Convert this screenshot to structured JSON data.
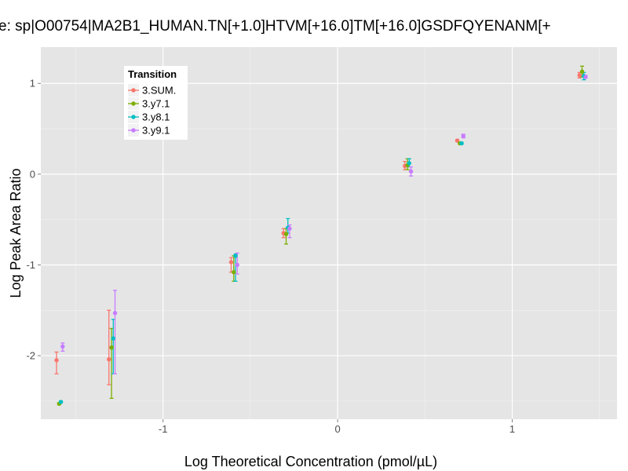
{
  "chart_data": {
    "type": "scatter",
    "title": "e: sp|O00754|MA2B1_HUMAN.TN[+1.0]HTVM[+16.0]TM[+16.0]GSDFQYENANM[+",
    "xlabel": "Log Theoretical Concentration (pmol/µL)",
    "ylabel": "Log Peak Area Ratio",
    "xlim": [
      -1.7,
      1.6
    ],
    "ylim": [
      -2.7,
      1.4
    ],
    "xticks": [
      -1,
      0,
      1
    ],
    "xtick_labels": [
      "-1",
      "0",
      "1"
    ],
    "yticks": [
      -2,
      -1,
      0,
      1
    ],
    "ytick_labels": [
      "-2",
      "-1",
      "0",
      "1"
    ],
    "grid": true,
    "legend": {
      "title": "Transition",
      "position": "top-left"
    },
    "series": [
      {
        "name": "3.SUM.",
        "color": "#F8766D",
        "points": [
          {
            "x": -1.61,
            "y": -2.05,
            "lo": -2.2,
            "hi": -1.96
          },
          {
            "x": -1.31,
            "y": -2.04,
            "lo": -2.32,
            "hi": -1.5
          },
          {
            "x": -0.61,
            "y": -0.97,
            "lo": -1.08,
            "hi": -0.92
          },
          {
            "x": -0.31,
            "y": -0.65,
            "lo": -0.7,
            "hi": -0.6
          },
          {
            "x": 0.385,
            "y": 0.09,
            "lo": 0.05,
            "hi": 0.14
          },
          {
            "x": 0.685,
            "y": 0.37,
            "lo": 0.36,
            "hi": 0.38
          },
          {
            "x": 1.385,
            "y": 1.09,
            "lo": 1.06,
            "hi": 1.12
          }
        ]
      },
      {
        "name": "3.y7.1",
        "color": "#7CAE00",
        "points": [
          {
            "x": -1.595,
            "y": -2.53,
            "lo": -2.54,
            "hi": -2.52
          },
          {
            "x": -1.295,
            "y": -1.91,
            "lo": -2.47,
            "hi": -1.7
          },
          {
            "x": -0.595,
            "y": -1.08,
            "lo": -1.18,
            "hi": -0.9
          },
          {
            "x": -0.295,
            "y": -0.66,
            "lo": -0.77,
            "hi": -0.6
          },
          {
            "x": 0.4,
            "y": 0.1,
            "lo": 0.05,
            "hi": 0.17
          },
          {
            "x": 0.7,
            "y": 0.34,
            "lo": 0.33,
            "hi": 0.35
          },
          {
            "x": 1.4,
            "y": 1.13,
            "lo": 1.07,
            "hi": 1.19
          }
        ]
      },
      {
        "name": "3.y8.1",
        "color": "#00BFC4",
        "points": [
          {
            "x": -1.585,
            "y": -2.51,
            "lo": -2.52,
            "hi": -2.5
          },
          {
            "x": -1.285,
            "y": -1.81,
            "lo": -2.2,
            "hi": -1.6
          },
          {
            "x": -0.585,
            "y": -0.9,
            "lo": -1.18,
            "hi": -0.88
          },
          {
            "x": -0.285,
            "y": -0.59,
            "lo": -0.65,
            "hi": -0.49
          },
          {
            "x": 0.41,
            "y": 0.12,
            "lo": 0.08,
            "hi": 0.17
          },
          {
            "x": 0.71,
            "y": 0.34,
            "lo": 0.33,
            "hi": 0.35
          },
          {
            "x": 1.41,
            "y": 1.08,
            "lo": 1.04,
            "hi": 1.12
          }
        ]
      },
      {
        "name": "3.y9.1",
        "color": "#C77CFF",
        "points": [
          {
            "x": -1.575,
            "y": -1.9,
            "lo": -1.95,
            "hi": -1.86
          },
          {
            "x": -1.275,
            "y": -1.53,
            "lo": -2.2,
            "hi": -1.28
          },
          {
            "x": -0.575,
            "y": -1.0,
            "lo": -1.1,
            "hi": -0.87
          },
          {
            "x": -0.275,
            "y": -0.6,
            "lo": -0.7,
            "hi": -0.56
          },
          {
            "x": 0.42,
            "y": 0.03,
            "lo": -0.02,
            "hi": 0.08
          },
          {
            "x": 0.72,
            "y": 0.42,
            "lo": 0.4,
            "hi": 0.44
          },
          {
            "x": 1.42,
            "y": 1.07,
            "lo": 1.06,
            "hi": 1.09
          }
        ]
      }
    ]
  }
}
